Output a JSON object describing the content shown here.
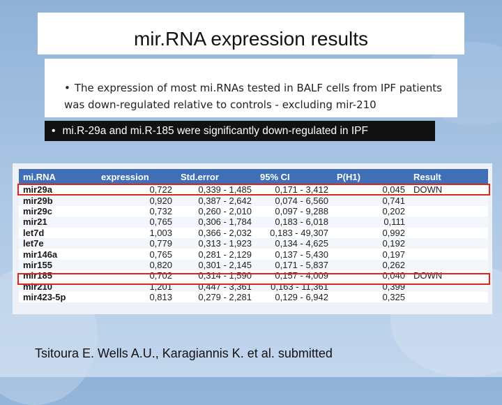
{
  "slide": {
    "title": "mir.RNA expression results",
    "bullet_1": "The expression of most mi.RNAs tested in BALF cells from IPF patients was down-regulated relative to controls - excluding mir-210",
    "bullet_2": "mi.R-29a and mi.R-185 were significantly down-regulated in IPF",
    "citation": "Tsitoura E.  Wells A.U., Karagiannis K. et al. submitted"
  },
  "table": {
    "headers": [
      "mi.RNA",
      "expression",
      "Std.error",
      "95% CI",
      "P(H1)",
      "Result"
    ],
    "rows": [
      {
        "name": "mir29a",
        "expression": "0,722",
        "std_error": "0,339 - 1,485",
        "ci95": "0,171 - 3,412",
        "p": "0,045",
        "result": "DOWN"
      },
      {
        "name": "mir29b",
        "expression": "0,920",
        "std_error": "0,387 - 2,642",
        "ci95": "0,074 - 6,560",
        "p": "0,741",
        "result": ""
      },
      {
        "name": "mir29c",
        "expression": "0,732",
        "std_error": "0,260 - 2,010",
        "ci95": "0,097 - 9,288",
        "p": "0,202",
        "result": ""
      },
      {
        "name": "mir21",
        "expression": "0,765",
        "std_error": "0,306 - 1,784",
        "ci95": "0,183 - 6,018",
        "p": "0,111",
        "result": ""
      },
      {
        "name": "let7d",
        "expression": "1,003",
        "std_error": "0,366 - 2,032",
        "ci95": "0,183 - 49,307",
        "p": "0,992",
        "result": ""
      },
      {
        "name": "let7e",
        "expression": "0,779",
        "std_error": "0,313 - 1,923",
        "ci95": "0,134 - 4,625",
        "p": "0,192",
        "result": ""
      },
      {
        "name": "mir146a",
        "expression": "0,765",
        "std_error": "0,281 - 2,129",
        "ci95": "0,137 - 5,430",
        "p": "0,197",
        "result": ""
      },
      {
        "name": "mir155",
        "expression": "0,820",
        "std_error": "0,301 - 2,145",
        "ci95": "0,171 - 5,837",
        "p": "0,262",
        "result": ""
      },
      {
        "name": "mir185",
        "expression": "0,702",
        "std_error": "0,314 - 1,590",
        "ci95": "0,157 - 4,009",
        "p": "0,040",
        "result": "DOWN"
      },
      {
        "name": "mir210",
        "expression": "1,201",
        "std_error": "0,447 - 3,361",
        "ci95": "0,163 - 11,361",
        "p": "0,399",
        "result": ""
      },
      {
        "name": "mir423-5p",
        "expression": "0,813",
        "std_error": "0,279 - 2,281",
        "ci95": "0,129 - 6,942",
        "p": "0,325",
        "result": ""
      }
    ]
  },
  "colors": {
    "header_bg": "#3f6fb6",
    "highlight": "#e0251d",
    "background": "#a9c4e3"
  }
}
